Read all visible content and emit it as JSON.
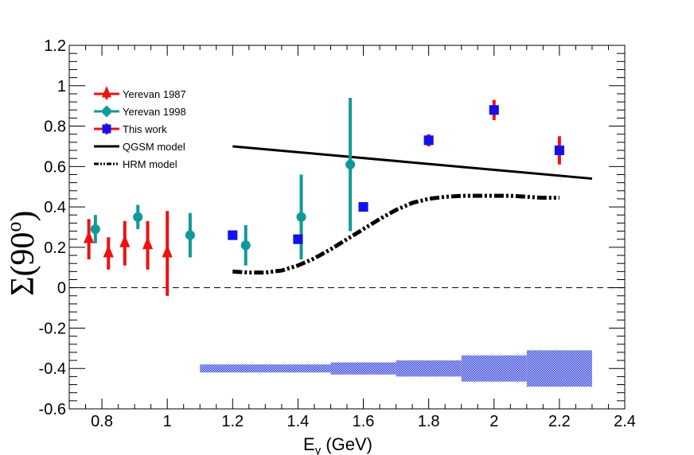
{
  "chart_data": {
    "type": "scatter",
    "title": "",
    "xlabel": {
      "main": "E",
      "sub": "γ",
      "unit": " (GeV)"
    },
    "ylabel": {
      "main": "Σ(90",
      "sup": "o",
      "close": ")"
    },
    "xlim": [
      0.7,
      2.4
    ],
    "ylim": [
      -0.6,
      1.2
    ],
    "x_ticks": [
      "0.8",
      "1",
      "1.2",
      "1.4",
      "1.6",
      "1.8",
      "2",
      "2.2",
      "2.4"
    ],
    "y_ticks": [
      "-0.6",
      "-0.4",
      "-0.2",
      "0",
      "0.2",
      "0.4",
      "0.6",
      "0.8",
      "1",
      "1.2"
    ],
    "grid": false,
    "legend_position": "top-left",
    "series": [
      {
        "name": "Yerevan 1987",
        "marker": "triangle",
        "color": "#ee1111",
        "points": [
          {
            "x": 0.76,
            "y": 0.24,
            "err": 0.1
          },
          {
            "x": 0.82,
            "y": 0.17,
            "err": 0.08
          },
          {
            "x": 0.87,
            "y": 0.22,
            "err": 0.11
          },
          {
            "x": 0.94,
            "y": 0.21,
            "err": 0.12
          },
          {
            "x": 1.0,
            "y": 0.17,
            "err": 0.21
          }
        ]
      },
      {
        "name": "Yerevan 1998",
        "marker": "circle",
        "color": "#119999",
        "points": [
          {
            "x": 0.78,
            "y": 0.29,
            "err": 0.07
          },
          {
            "x": 0.91,
            "y": 0.35,
            "err": 0.06
          },
          {
            "x": 1.07,
            "y": 0.26,
            "err": 0.11
          },
          {
            "x": 1.24,
            "y": 0.21,
            "err": 0.1
          },
          {
            "x": 1.41,
            "y": 0.35,
            "err": 0.21
          },
          {
            "x": 1.56,
            "y": 0.61,
            "err": 0.33
          }
        ]
      },
      {
        "name": "This work",
        "marker": "square",
        "color": "#1111ee",
        "error_color": "#ee1111",
        "points": [
          {
            "x": 1.2,
            "y": 0.26,
            "err": 0.02
          },
          {
            "x": 1.4,
            "y": 0.24,
            "err": 0.02
          },
          {
            "x": 1.6,
            "y": 0.4,
            "err": 0.02
          },
          {
            "x": 1.8,
            "y": 0.73,
            "err": 0.03
          },
          {
            "x": 2.0,
            "y": 0.88,
            "err": 0.05
          },
          {
            "x": 2.2,
            "y": 0.68,
            "err": 0.07
          }
        ]
      }
    ],
    "models": [
      {
        "name": "QGSM model",
        "style": "solid",
        "color": "#000000",
        "x": [
          1.2,
          2.3
        ],
        "y": [
          0.7,
          0.54
        ]
      },
      {
        "name": "HRM model",
        "style": "dash-dot-dot",
        "color": "#000000",
        "x": [
          1.2,
          1.25,
          1.3,
          1.35,
          1.4,
          1.45,
          1.5,
          1.55,
          1.6,
          1.65,
          1.7,
          1.75,
          1.8,
          1.85,
          1.9,
          1.95,
          2.0,
          2.05,
          2.1,
          2.15,
          2.2
        ],
        "y": [
          0.08,
          0.075,
          0.075,
          0.085,
          0.11,
          0.145,
          0.19,
          0.24,
          0.29,
          0.34,
          0.385,
          0.42,
          0.44,
          0.45,
          0.455,
          0.455,
          0.455,
          0.455,
          0.45,
          0.445,
          0.445
        ]
      }
    ],
    "reference_line": {
      "y": 0,
      "style": "dashed"
    },
    "systematic_band": {
      "color": "#3344dd",
      "center": -0.4,
      "bins": [
        {
          "x0": 1.1,
          "x1": 1.5,
          "half_width": 0.02
        },
        {
          "x0": 1.5,
          "x1": 1.7,
          "half_width": 0.03
        },
        {
          "x0": 1.7,
          "x1": 1.9,
          "half_width": 0.04
        },
        {
          "x0": 1.9,
          "x1": 2.1,
          "half_width": 0.065
        },
        {
          "x0": 2.1,
          "x1": 2.3,
          "half_width": 0.09
        }
      ]
    }
  }
}
